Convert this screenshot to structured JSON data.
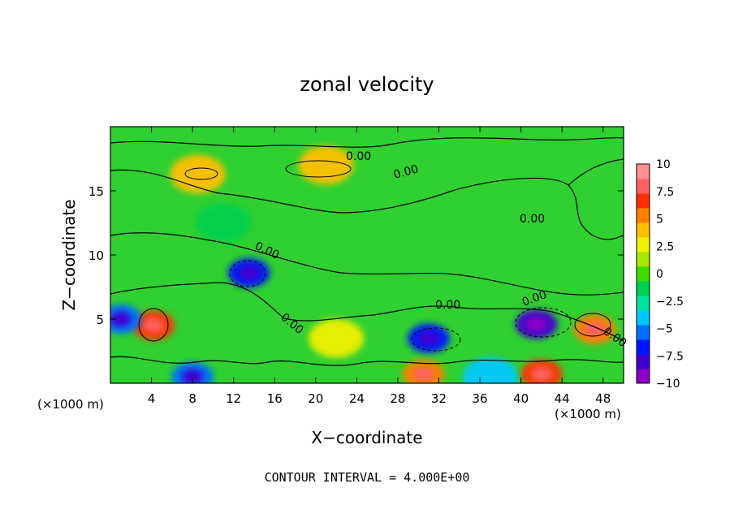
{
  "chart_data": {
    "type": "heatmap",
    "title": "zonal velocity",
    "xlabel": "X−coordinate",
    "ylabel": "Z−coordinate",
    "x_scale_left": "(×1000 m)",
    "x_scale_right": "(×1000 m)",
    "xlim": [
      0,
      50
    ],
    "ylim": [
      0,
      20
    ],
    "x_ticks": [
      4,
      8,
      12,
      16,
      20,
      24,
      28,
      32,
      36,
      40,
      44,
      48
    ],
    "y_ticks": [
      5,
      10,
      15
    ],
    "colorbar": {
      "ticks": [
        "10",
        "7.5",
        "5",
        "2.5",
        "0",
        "−2.5",
        "−5",
        "−7.5",
        "−10"
      ],
      "vmin": -10,
      "vmax": 10,
      "colors": [
        "#8a00c8",
        "#4000d0",
        "#0014ff",
        "#0070ff",
        "#00c8ff",
        "#00e0a0",
        "#00d050",
        "#40dc00",
        "#a8e800",
        "#f0f000",
        "#ffc000",
        "#ff8000",
        "#ff3000",
        "#ff6060",
        "#ff9090"
      ]
    },
    "contour_labels": [
      "0.00",
      "0.00",
      "0.00",
      "0.00",
      "0.00",
      "0.00",
      "0.00",
      "0.00"
    ],
    "contour_interval_text": "CONTOUR INTERVAL = 4.000E+00",
    "features": [
      {
        "x": 13.5,
        "z": 8.6,
        "u": -7
      },
      {
        "x": 4.2,
        "z": 4.5,
        "u": 7
      },
      {
        "x": 31.0,
        "z": 3.5,
        "u": -7
      },
      {
        "x": 41.5,
        "z": 4.6,
        "u": -8
      },
      {
        "x": 47.2,
        "z": 4.2,
        "u": 6
      },
      {
        "x": 42.0,
        "z": 0.7,
        "u": 7
      },
      {
        "x": 30.5,
        "z": 0.7,
        "u": 6
      },
      {
        "x": 1.0,
        "z": 5.0,
        "u": -6
      },
      {
        "x": 8.0,
        "z": 0.5,
        "u": -6
      },
      {
        "x": 37.0,
        "z": 0.5,
        "u": -5
      },
      {
        "x": 21.0,
        "z": 17.0,
        "u": 4
      },
      {
        "x": 8.5,
        "z": 16.3,
        "u": 4
      },
      {
        "x": 11.0,
        "z": 12.5,
        "u": -2
      },
      {
        "x": 22.0,
        "z": 3.5,
        "u": 3
      }
    ]
  }
}
